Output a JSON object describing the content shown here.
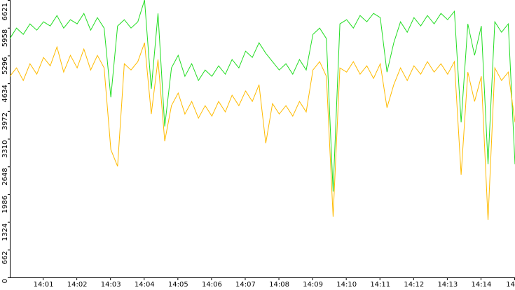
{
  "chart_data": {
    "type": "line",
    "x": [
      0,
      0.2,
      0.4,
      0.6,
      0.8,
      1,
      1.2,
      1.4,
      1.6,
      1.8,
      2,
      2.2,
      2.4,
      2.6,
      2.8,
      3,
      3.2,
      3.4,
      3.6,
      3.8,
      4,
      4.2,
      4.4,
      4.6,
      4.8,
      5,
      5.2,
      5.4,
      5.6,
      5.8,
      6,
      6.2,
      6.4,
      6.6,
      6.8,
      7,
      7.2,
      7.4,
      7.6,
      7.8,
      8,
      8.2,
      8.4,
      8.6,
      8.8,
      9,
      9.2,
      9.4,
      9.6,
      9.8,
      10,
      10.2,
      10.4,
      10.6,
      10.8,
      11,
      11.2,
      11.4,
      11.6,
      11.8,
      12,
      12.2,
      12.4,
      12.6,
      12.8,
      13,
      13.2,
      13.4,
      13.6,
      13.8,
      14,
      14.2,
      14.4,
      14.6,
      14.8,
      15
    ],
    "series": [
      {
        "color": "#22dd22",
        "values": [
          5700,
          5950,
          5800,
          6050,
          5900,
          6100,
          6000,
          6250,
          5950,
          6150,
          6050,
          6300,
          5900,
          6200,
          5950,
          4300,
          6000,
          6150,
          5950,
          6100,
          6621,
          4500,
          6300,
          3600,
          5000,
          5300,
          4800,
          5100,
          4700,
          4950,
          4800,
          5050,
          4850,
          5200,
          5000,
          5400,
          5250,
          5600,
          5350,
          5150,
          4950,
          5100,
          4850,
          5200,
          4950,
          5800,
          5950,
          5700,
          2050,
          6050,
          6150,
          5950,
          6250,
          6100,
          6300,
          6200,
          4900,
          5600,
          6100,
          5850,
          6200,
          6000,
          6250,
          6050,
          6300,
          6150,
          6350,
          3700,
          6050,
          5300,
          6000,
          2700,
          6100,
          5850,
          6050,
          2700
        ]
      },
      {
        "color": "#ffbb00",
        "values": [
          4800,
          5000,
          4700,
          5100,
          4850,
          5250,
          5050,
          5500,
          4900,
          5300,
          5000,
          5450,
          4950,
          5300,
          5000,
          3050,
          2650,
          5100,
          4950,
          5150,
          5600,
          3900,
          5200,
          3250,
          4100,
          4400,
          3900,
          4200,
          3800,
          4100,
          3850,
          4200,
          3950,
          4350,
          4100,
          4450,
          4200,
          4600,
          3200,
          4150,
          3900,
          4100,
          3850,
          4200,
          3950,
          4950,
          5150,
          4800,
          1450,
          5000,
          4900,
          5150,
          4850,
          5050,
          4750,
          5100,
          4050,
          4600,
          5000,
          4700,
          5050,
          4850,
          5150,
          4900,
          5100,
          4850,
          5150,
          2450,
          4900,
          4200,
          4800,
          1370,
          5000,
          4700,
          4900,
          3700
        ]
      }
    ],
    "xlim": [
      0,
      15
    ],
    "xticks": [
      {
        "value": 1,
        "label": "14:01"
      },
      {
        "value": 2,
        "label": "14:02"
      },
      {
        "value": 3,
        "label": "14:03"
      },
      {
        "value": 4,
        "label": "14:04"
      },
      {
        "value": 5,
        "label": "14:05"
      },
      {
        "value": 6,
        "label": "14:06"
      },
      {
        "value": 7,
        "label": "14:07"
      },
      {
        "value": 8,
        "label": "14:08"
      },
      {
        "value": 9,
        "label": "14:09"
      },
      {
        "value": 10,
        "label": "14:10"
      },
      {
        "value": 11,
        "label": "14:11"
      },
      {
        "value": 12,
        "label": "14:12"
      },
      {
        "value": 13,
        "label": "14:13"
      },
      {
        "value": 14,
        "label": "14:14"
      },
      {
        "value": 15,
        "label": "14"
      }
    ],
    "ylim": [
      0,
      6621
    ],
    "yticks": [
      0,
      662,
      1324,
      1986,
      2648,
      3310,
      3972,
      4634,
      5296,
      5958,
      6621
    ]
  }
}
